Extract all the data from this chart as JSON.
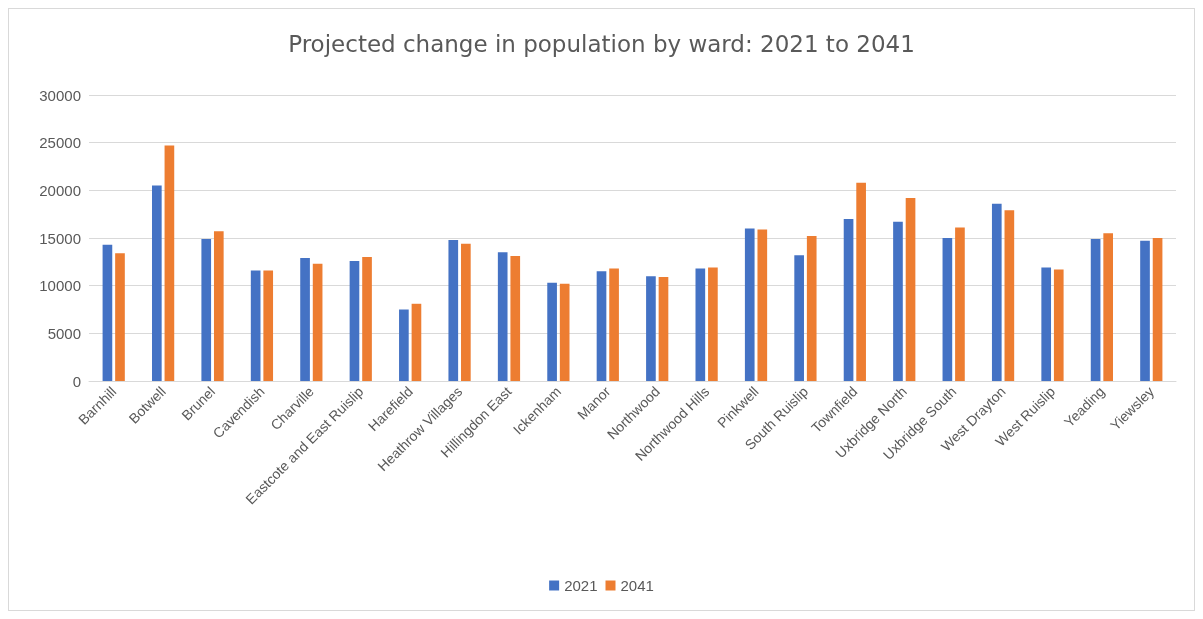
{
  "chart_data": {
    "type": "bar",
    "title": "Projected change in population by ward: 2021 to 2041",
    "categories": [
      "Barnhill",
      "Botwell",
      "Brunel",
      "Cavendish",
      "Charville",
      "Eastcote and East Ruislip",
      "Harefield",
      "Heathrow Villages",
      "Hillingdon East",
      "Ickenham",
      "Manor",
      "Northwood",
      "Northwood Hills",
      "Pinkwell",
      "South Ruislip",
      "Townfield",
      "Uxbridge North",
      "Uxbridge South",
      "West Drayton",
      "West Ruislip",
      "Yeading",
      "Yiewsley"
    ],
    "series": [
      {
        "name": "2021",
        "color": "#4472c4",
        "values": [
          14300,
          20500,
          14900,
          11600,
          12900,
          12600,
          7500,
          14800,
          13500,
          10300,
          11500,
          11000,
          11800,
          16000,
          13200,
          17000,
          16700,
          15000,
          18600,
          11900,
          14900,
          14700
        ]
      },
      {
        "name": "2041",
        "color": "#ed7d31",
        "values": [
          13400,
          24700,
          15700,
          11600,
          12300,
          13000,
          8100,
          14400,
          13100,
          10200,
          11800,
          10900,
          11900,
          15900,
          15200,
          20800,
          19200,
          16100,
          17900,
          11700,
          15500,
          15000
        ]
      }
    ],
    "ylim": [
      0,
      30000
    ],
    "yticks": [
      0,
      5000,
      10000,
      15000,
      20000,
      25000,
      30000
    ],
    "grid": "y",
    "legend": "bottom"
  }
}
